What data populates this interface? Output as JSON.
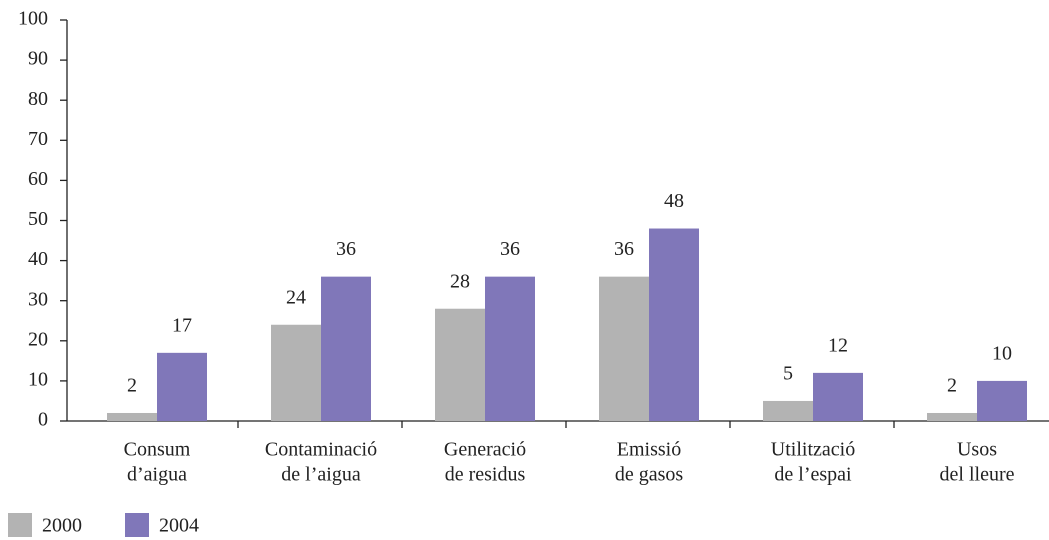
{
  "chart_data": {
    "type": "bar",
    "categories": [
      [
        "Consum",
        "d’aigua"
      ],
      [
        "Contaminació",
        "de l’aigua"
      ],
      [
        "Generació",
        "de residus"
      ],
      [
        "Emissió",
        "de gasos"
      ],
      [
        "Utilització",
        "de l’espai"
      ],
      [
        "Usos",
        "del lleure"
      ]
    ],
    "series": [
      {
        "name": "2000",
        "color": "#b3b3b3",
        "values": [
          2,
          24,
          28,
          36,
          5,
          2
        ]
      },
      {
        "name": "2004",
        "color": "#8077b9",
        "values": [
          17,
          36,
          36,
          48,
          12,
          10
        ]
      }
    ],
    "ylim": [
      0,
      100
    ],
    "yticks": [
      0,
      10,
      20,
      30,
      40,
      50,
      60,
      70,
      80,
      90,
      100
    ],
    "grid": false,
    "legend": "bottom-left"
  }
}
